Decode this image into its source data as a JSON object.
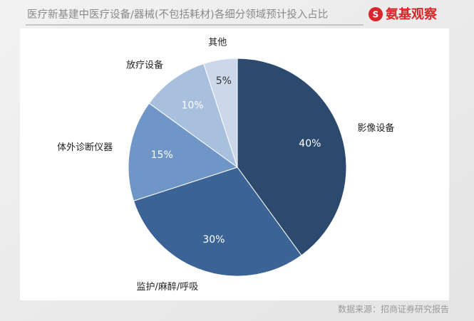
{
  "logo": "氨基观察",
  "source": "数据来源：招商证券研究报告",
  "chart_data": {
    "type": "pie",
    "title": "医疗新基建中医疗设备/器械(不包括耗材)各细分领域预计投入占比",
    "categories": [
      "影像设备",
      "监护/麻醉/呼吸",
      "体外诊断仪器",
      "放疗设备",
      "其他"
    ],
    "values": [
      40,
      30,
      15,
      10,
      5
    ],
    "value_labels": [
      "40%",
      "30%",
      "15%",
      "10%",
      "5%"
    ],
    "colors": [
      "#2b4a6e",
      "#3c6396",
      "#7096c7",
      "#a8bfdd",
      "#ccd8ea"
    ]
  }
}
